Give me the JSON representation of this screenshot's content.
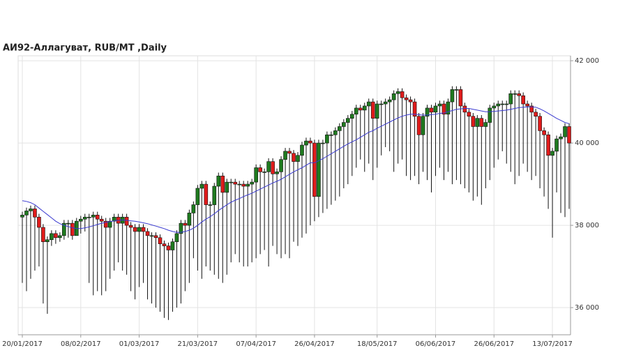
{
  "chart_data": {
    "type": "candlestick",
    "title": "АИ92-Аллагуват,  RUB/MT ,Daily",
    "up_color": "#1f7a1f",
    "down_color": "#e01b1b",
    "ma_color": "#3a3ad0",
    "grid": true,
    "ylim": [
      35340,
      42120
    ],
    "yticks": [
      {
        "value": 36000,
        "label": "36 000"
      },
      {
        "value": 38000,
        "label": "38 000"
      },
      {
        "value": 40000,
        "label": "40 000"
      },
      {
        "value": 42000,
        "label": "42 000"
      }
    ],
    "categories": [
      "20/01/2017",
      null,
      null,
      null,
      null,
      null,
      null,
      null,
      null,
      null,
      null,
      null,
      null,
      null,
      "08/02/2017",
      null,
      null,
      null,
      null,
      null,
      null,
      null,
      null,
      null,
      null,
      null,
      null,
      null,
      "01/03/2017",
      null,
      null,
      null,
      null,
      null,
      null,
      null,
      null,
      null,
      null,
      null,
      null,
      null,
      "21/03/2017",
      null,
      null,
      null,
      null,
      null,
      null,
      null,
      null,
      null,
      null,
      null,
      null,
      null,
      "07/04/2017",
      null,
      null,
      null,
      null,
      null,
      null,
      null,
      null,
      null,
      null,
      null,
      null,
      null,
      "26/04/2017",
      null,
      null,
      null,
      null,
      null,
      null,
      null,
      null,
      null,
      null,
      null,
      null,
      null,
      null,
      "18/05/2017",
      null,
      null,
      null,
      null,
      null,
      null,
      null,
      null,
      null,
      null,
      null,
      null,
      null,
      "06/06/2017",
      null,
      null,
      null,
      null,
      null,
      null,
      null,
      null,
      null,
      null,
      null,
      null,
      null,
      "26/06/2017",
      null,
      null,
      null,
      null,
      null,
      null,
      null,
      null,
      null,
      null,
      null,
      null,
      null,
      "13/07/2017",
      null,
      null,
      null,
      null
    ],
    "open": [
      38200,
      38250,
      38350,
      38400,
      38200,
      37950,
      37600,
      37650,
      37800,
      37700,
      37750,
      38050,
      38050,
      37750,
      38100,
      38150,
      38200,
      38200,
      38250,
      38150,
      38100,
      37950,
      38100,
      38200,
      38050,
      38200,
      38000,
      37950,
      37850,
      37950,
      37850,
      37750,
      37750,
      37700,
      37550,
      37500,
      37400,
      37600,
      37800,
      38050,
      38000,
      38300,
      38500,
      38900,
      39000,
      38500,
      38500,
      38950,
      39200,
      38800,
      39050,
      39050,
      39000,
      39000,
      38950,
      39000,
      39050,
      39400,
      39300,
      39300,
      39550,
      39250,
      39300,
      39600,
      39800,
      39750,
      39550,
      39700,
      39950,
      40050,
      40000,
      38700,
      40000,
      40000,
      40200,
      40200,
      40300,
      40400,
      40500,
      40600,
      40700,
      40850,
      40800,
      40900,
      41000,
      40600,
      40950,
      40950,
      41000,
      41050,
      41200,
      41250,
      41100,
      41050,
      41000,
      40650,
      40200,
      40650,
      40850,
      40750,
      40900,
      40950,
      40700,
      41000,
      41300,
      41300,
      40900,
      40750,
      40650,
      40400,
      40600,
      40400,
      40500,
      40850,
      40900,
      40950,
      40950,
      40950,
      41200,
      41200,
      41150,
      40950,
      40900,
      40750,
      40650,
      40300,
      40200,
      39700,
      39800,
      40100,
      40150,
      40400
    ],
    "high": [
      38330,
      38430,
      38480,
      38480,
      38280,
      38030,
      37730,
      37880,
      37880,
      37830,
      38130,
      38130,
      38130,
      38180,
      38230,
      38280,
      38280,
      38330,
      38330,
      38230,
      38180,
      38180,
      38280,
      38280,
      38280,
      38280,
      38080,
      38030,
      38030,
      38030,
      37930,
      37830,
      37830,
      37780,
      37630,
      37580,
      37680,
      37880,
      38130,
      38130,
      38380,
      38580,
      38980,
      39080,
      39080,
      38580,
      39030,
      39280,
      39280,
      39130,
      39130,
      39130,
      39080,
      39080,
      39080,
      39130,
      39480,
      39480,
      39380,
      39630,
      39630,
      39380,
      39680,
      39880,
      39880,
      39830,
      39780,
      40030,
      40130,
      40130,
      40080,
      40080,
      40080,
      40280,
      40280,
      40380,
      40480,
      40580,
      40680,
      40780,
      40930,
      40930,
      40980,
      41080,
      41080,
      41030,
      41030,
      41080,
      41130,
      41280,
      41330,
      41330,
      41180,
      41130,
      41080,
      40730,
      40730,
      40930,
      40930,
      40980,
      41030,
      41030,
      41080,
      41380,
      41380,
      41380,
      40980,
      40830,
      40730,
      40680,
      40680,
      40580,
      40930,
      40980,
      41030,
      41030,
      41030,
      41280,
      41280,
      41280,
      41230,
      41030,
      40980,
      40830,
      40730,
      40380,
      40280,
      39880,
      40180,
      40230,
      40480,
      40480
    ],
    "low": [
      36600,
      36400,
      36700,
      36900,
      37000,
      36100,
      35850,
      37500,
      37550,
      37600,
      37650,
      37700,
      37650,
      37750,
      37800,
      37850,
      36600,
      36300,
      36400,
      36300,
      36400,
      36700,
      36900,
      37100,
      36900,
      36800,
      36400,
      36200,
      36500,
      36600,
      36200,
      36100,
      36000,
      35900,
      35750,
      35700,
      35900,
      36000,
      36100,
      36400,
      36600,
      37200,
      36900,
      36700,
      37000,
      36900,
      36800,
      36700,
      36600,
      36800,
      37100,
      37300,
      37100,
      37000,
      37000,
      37100,
      37200,
      37300,
      37400,
      37000,
      37500,
      37300,
      37200,
      37300,
      37200,
      37600,
      37500,
      37700,
      37800,
      38000,
      38100,
      38200,
      38300,
      38400,
      38500,
      38600,
      38700,
      38900,
      39000,
      39200,
      39400,
      39600,
      39300,
      39500,
      39100,
      39400,
      39700,
      39900,
      39800,
      39300,
      39500,
      39600,
      39200,
      39100,
      39200,
      39000,
      39300,
      39100,
      38800,
      39200,
      39400,
      39100,
      39300,
      39000,
      39100,
      39000,
      38900,
      38800,
      38600,
      38700,
      38500,
      38900,
      39100,
      39400,
      39600,
      39800,
      39500,
      39300,
      39000,
      39200,
      39500,
      39300,
      39100,
      39200,
      38900,
      38700,
      38400,
      37700,
      38800,
      38300,
      38200,
      38400
    ],
    "close": [
      38250,
      38350,
      38400,
      38200,
      37950,
      37600,
      37650,
      37800,
      37700,
      37750,
      38050,
      38050,
      37750,
      38100,
      38150,
      38200,
      38200,
      38250,
      38150,
      38100,
      37950,
      38100,
      38200,
      38050,
      38200,
      38000,
      37950,
      37850,
      37950,
      37850,
      37750,
      37750,
      37700,
      37550,
      37500,
      37400,
      37600,
      37800,
      38050,
      38000,
      38300,
      38500,
      38900,
      39000,
      38500,
      38500,
      38950,
      39200,
      38800,
      39050,
      39050,
      39000,
      39000,
      38950,
      39000,
      39050,
      39400,
      39300,
      39300,
      39550,
      39250,
      39300,
      39600,
      39800,
      39750,
      39550,
      39700,
      39950,
      40050,
      40000,
      38700,
      40000,
      40000,
      40200,
      40200,
      40300,
      40400,
      40500,
      40600,
      40700,
      40850,
      40800,
      40900,
      41000,
      40600,
      40950,
      40950,
      41000,
      41050,
      41200,
      41250,
      41100,
      41050,
      41000,
      40650,
      40200,
      40650,
      40850,
      40750,
      40900,
      40950,
      40700,
      41000,
      41300,
      41300,
      40900,
      40750,
      40650,
      40400,
      40600,
      40400,
      40500,
      40850,
      40900,
      40950,
      40950,
      40950,
      41200,
      41200,
      41150,
      40950,
      40900,
      40750,
      40650,
      40300,
      40200,
      39700,
      39800,
      40100,
      40150,
      40400,
      40000
    ],
    "ma": [
      38600,
      38580,
      38550,
      38500,
      38420,
      38340,
      38260,
      38180,
      38100,
      38040,
      38000,
      37970,
      37940,
      37920,
      37920,
      37940,
      37960,
      37990,
      38020,
      38050,
      38070,
      38090,
      38110,
      38120,
      38130,
      38120,
      38110,
      38100,
      38080,
      38060,
      38040,
      38010,
      37980,
      37950,
      37920,
      37880,
      37850,
      37830,
      37830,
      37850,
      37880,
      37930,
      38000,
      38080,
      38150,
      38210,
      38280,
      38360,
      38430,
      38500,
      38560,
      38610,
      38650,
      38700,
      38740,
      38780,
      38830,
      38880,
      38930,
      38980,
      39030,
      39070,
      39120,
      39180,
      39240,
      39300,
      39350,
      39400,
      39460,
      39520,
      39520,
      39570,
      39620,
      39680,
      39740,
      39800,
      39860,
      39920,
      39980,
      40030,
      40080,
      40140,
      40200,
      40260,
      40300,
      40360,
      40410,
      40460,
      40510,
      40560,
      40610,
      40650,
      40680,
      40700,
      40700,
      40690,
      40680,
      40680,
      40690,
      40700,
      40720,
      40730,
      40760,
      40790,
      40820,
      40830,
      40840,
      40840,
      40820,
      40800,
      40780,
      40760,
      40760,
      40770,
      40780,
      40790,
      40800,
      40820,
      40840,
      40860,
      40870,
      40880,
      40880,
      40870,
      40830,
      40780,
      40720,
      40660,
      40600,
      40550,
      40500,
      40470
    ]
  }
}
